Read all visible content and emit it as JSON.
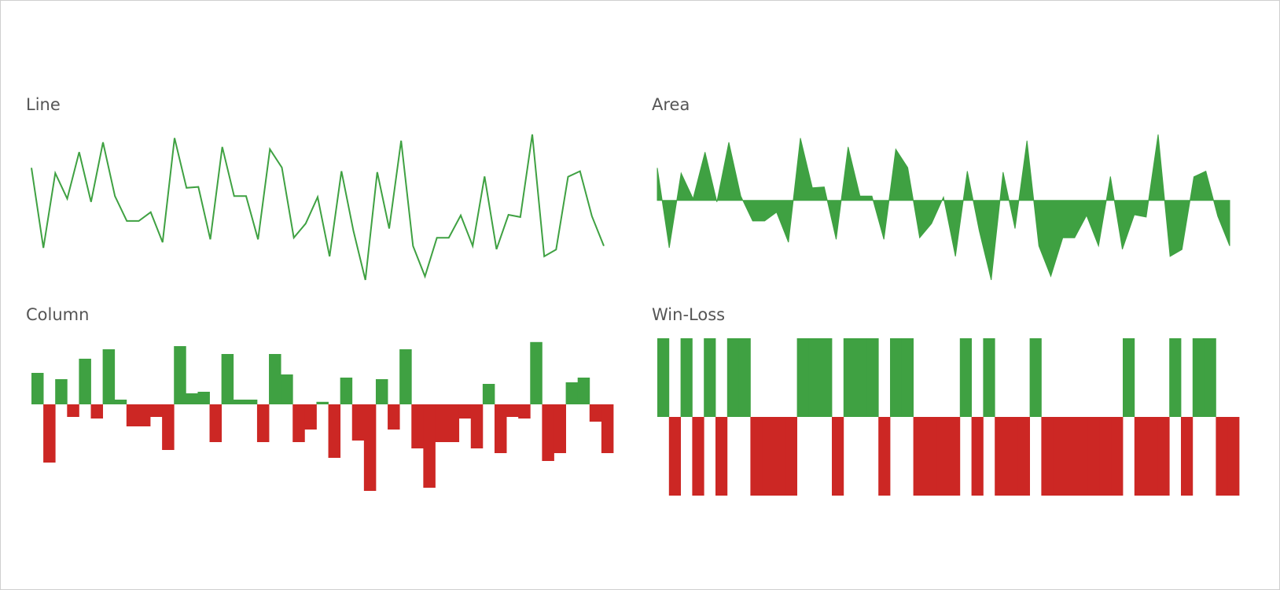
{
  "colors": {
    "positive": "#3fa142",
    "negative": "#cc2724",
    "title": "#555555"
  },
  "panels": {
    "line": {
      "title": "Line"
    },
    "area": {
      "title": "Area"
    },
    "column": {
      "title": "Column"
    },
    "winloss": {
      "title": "Win-Loss"
    }
  },
  "chart_data": [
    {
      "type": "line",
      "title": "Line",
      "values": [
        0.99,
        -1.45,
        0.83,
        0.05,
        1.47,
        -0.05,
        1.77,
        0.13,
        -0.63,
        -0.63,
        -0.36,
        -1.28,
        1.9,
        0.38,
        0.41,
        -1.19,
        1.63,
        0.13,
        0.13,
        -1.19,
        1.56,
        1.0,
        -1.14,
        -0.71,
        0.1,
        -1.71,
        0.89,
        -0.93,
        -2.43,
        0.86,
        -0.86,
        1.82,
        -1.39,
        -2.32,
        -1.14,
        -1.14,
        -0.46,
        -1.39,
        0.73,
        -1.49,
        -0.44,
        -0.51,
        2.01,
        -1.71,
        -1.5,
        0.72,
        0.89,
        -0.48,
        -1.39
      ],
      "ylim": [
        -2.6,
        2.2
      ]
    },
    {
      "type": "area",
      "title": "Area",
      "values": [
        0.99,
        -1.45,
        0.83,
        0.05,
        1.47,
        -0.05,
        1.77,
        0.13,
        -0.63,
        -0.63,
        -0.36,
        -1.28,
        1.9,
        0.38,
        0.41,
        -1.19,
        1.63,
        0.13,
        0.13,
        -1.19,
        1.56,
        1.0,
        -1.14,
        -0.71,
        0.1,
        -1.71,
        0.89,
        -0.93,
        -2.43,
        0.86,
        -0.86,
        1.82,
        -1.39,
        -2.32,
        -1.14,
        -1.14,
        -0.46,
        -1.39,
        0.73,
        -1.49,
        -0.44,
        -0.51,
        2.01,
        -1.71,
        -1.5,
        0.72,
        0.89,
        -0.48,
        -1.39
      ],
      "baseline": 0,
      "ylim": [
        -2.6,
        2.2
      ]
    },
    {
      "type": "bar",
      "title": "Column",
      "values": [
        1.0,
        -1.85,
        0.8,
        -0.4,
        1.45,
        -0.45,
        1.75,
        0.15,
        -0.7,
        -0.7,
        -0.4,
        -1.45,
        1.85,
        0.35,
        0.4,
        -1.2,
        1.6,
        0.15,
        0.15,
        -1.2,
        1.6,
        0.95,
        -1.2,
        -0.8,
        0.08,
        -1.7,
        0.85,
        -1.15,
        -2.75,
        0.8,
        -0.8,
        1.75,
        -1.4,
        -2.65,
        -1.2,
        -1.2,
        -0.45,
        -1.4,
        0.65,
        -1.55,
        -0.4,
        -0.45,
        1.98,
        -1.8,
        -1.55,
        0.7,
        0.85,
        -0.55,
        -1.55
      ],
      "baseline": 0,
      "ylim": [
        -2.9,
        2.1
      ]
    },
    {
      "type": "bar",
      "title": "Win-Loss",
      "values": [
        1,
        -1,
        1,
        -1,
        1,
        -1,
        1,
        1,
        -1,
        -1,
        -1,
        -1,
        1,
        1,
        1,
        -1,
        1,
        1,
        1,
        -1,
        1,
        1,
        -1,
        -1,
        -1,
        -1,
        1,
        -1,
        1,
        -1,
        -1,
        -1,
        1,
        -1,
        -1,
        -1,
        -1,
        -1,
        -1,
        -1,
        1,
        -1,
        -1,
        -1,
        1,
        -1,
        1,
        1,
        -1,
        -1
      ],
      "baseline": 0,
      "ylim": [
        -1,
        1
      ]
    }
  ]
}
